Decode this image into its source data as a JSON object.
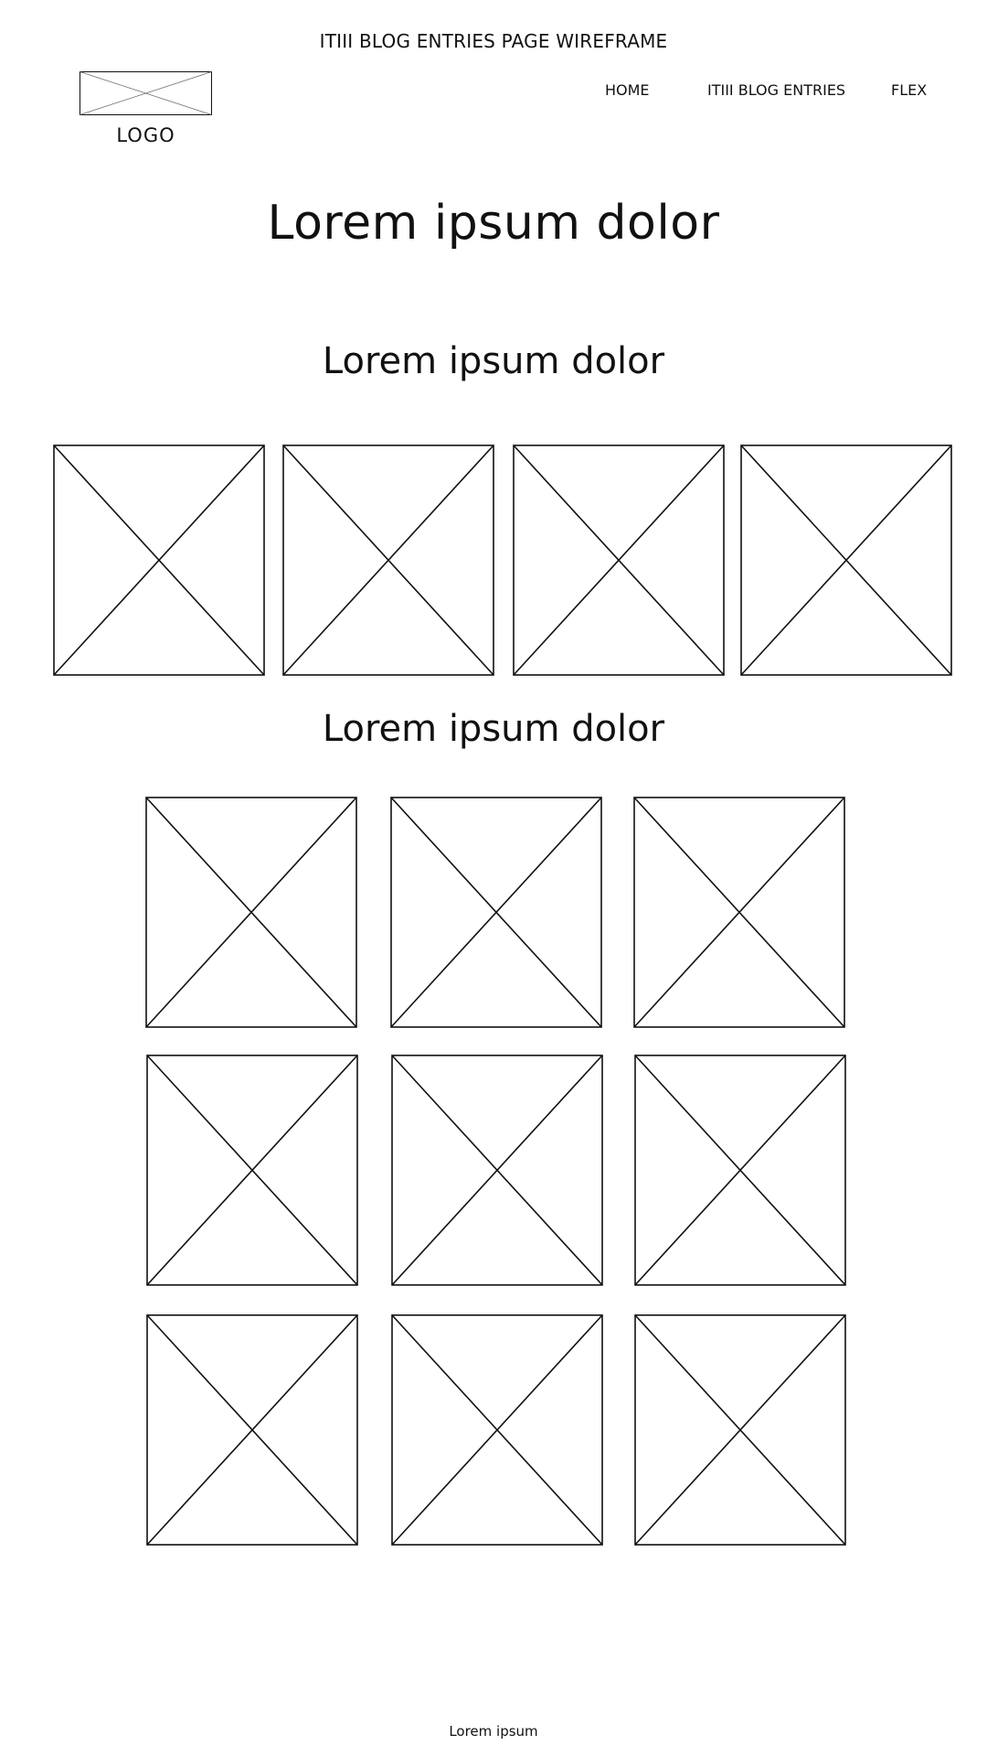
{
  "page": {
    "caption": "ITIII BLOG ENTRIES PAGE WIREFRAME"
  },
  "header": {
    "logo_label": "LOGO",
    "nav": {
      "home": "HOME",
      "blog": "ITIII BLOG ENTRIES",
      "flex": "FLEX"
    }
  },
  "main": {
    "title": "Lorem ipsum dolor",
    "sections": [
      {
        "heading": "Lorem ipsum dolor",
        "image_count": 4
      },
      {
        "heading": "Lorem ipsum dolor",
        "image_count": 9
      }
    ]
  },
  "footer": {
    "text": "Lorem ipsum"
  },
  "colors": {
    "stroke": "#111111",
    "background": "#ffffff"
  }
}
